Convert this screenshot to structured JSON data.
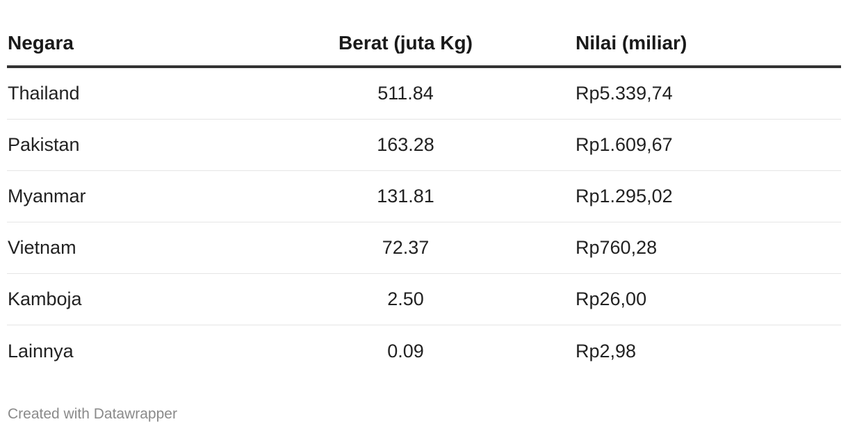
{
  "chart_data": {
    "type": "table",
    "columns": [
      "Negara",
      "Berat (juta Kg)",
      "Nilai (miliar)"
    ],
    "rows": [
      [
        "Thailand",
        "511.84",
        "Rp5.339,74"
      ],
      [
        "Pakistan",
        "163.28",
        "Rp1.609,67"
      ],
      [
        "Myanmar",
        "131.81",
        "Rp1.295,02"
      ],
      [
        "Vietnam",
        "72.37",
        "Rp760,28"
      ],
      [
        "Kamboja",
        "2.50",
        "Rp26,00"
      ],
      [
        "Lainnya",
        "0.09",
        "Rp2,98"
      ]
    ]
  },
  "footer": {
    "credit": "Created with Datawrapper"
  },
  "colors": {
    "header_rule": "#333333",
    "row_divider": "#e5e5e5",
    "credit_text": "#8a8a8a"
  }
}
